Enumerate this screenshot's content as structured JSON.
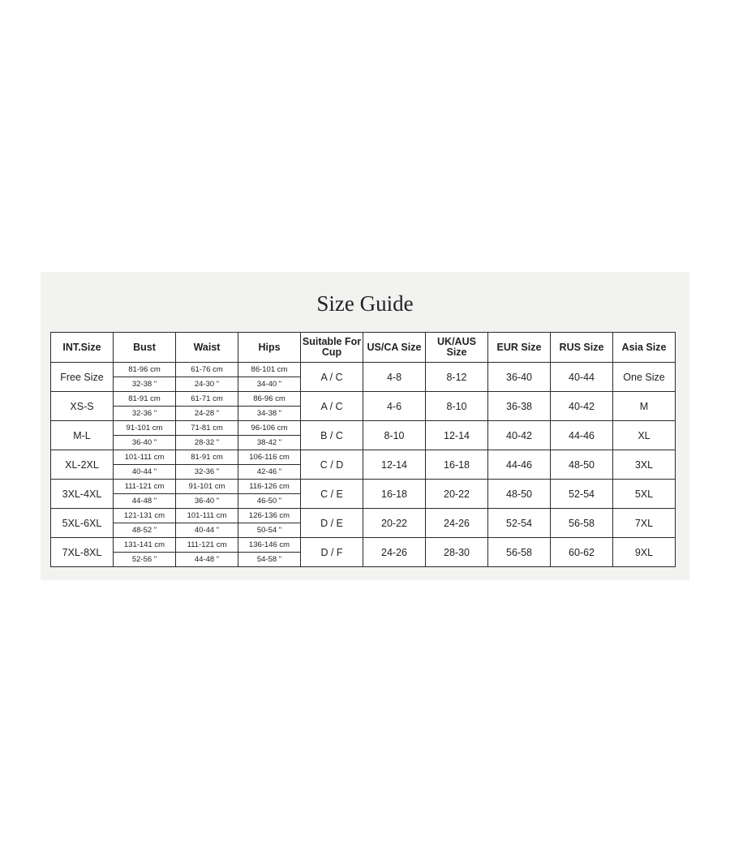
{
  "title": "Size Guide",
  "headers": [
    "INT.Size",
    "Bust",
    "Waist",
    "Hips",
    "Suitable For Cup",
    "US/CA Size",
    "UK/AUS Size",
    "EUR Size",
    "RUS Size",
    "Asia Size"
  ],
  "rows": [
    {
      "int": "Free Size",
      "bust_cm": "81-96 cm",
      "bust_in": "32-38 \"",
      "waist_cm": "61-76 cm",
      "waist_in": "24-30 \"",
      "hips_cm": "86-101 cm",
      "hips_in": "34-40 \"",
      "cup": "A / C",
      "us": "4-8",
      "uk": "8-12",
      "eur": "36-40",
      "rus": "40-44",
      "asia": "One Size"
    },
    {
      "int": "XS-S",
      "bust_cm": "81-91 cm",
      "bust_in": "32-36 \"",
      "waist_cm": "61-71 cm",
      "waist_in": "24-28 \"",
      "hips_cm": "86-96 cm",
      "hips_in": "34-38 \"",
      "cup": "A / C",
      "us": "4-6",
      "uk": "8-10",
      "eur": "36-38",
      "rus": "40-42",
      "asia": "M"
    },
    {
      "int": "M-L",
      "bust_cm": "91-101 cm",
      "bust_in": "36-40 \"",
      "waist_cm": "71-81 cm",
      "waist_in": "28-32 \"",
      "hips_cm": "96-106 cm",
      "hips_in": "38-42 \"",
      "cup": "B / C",
      "us": "8-10",
      "uk": "12-14",
      "eur": "40-42",
      "rus": "44-46",
      "asia": "XL"
    },
    {
      "int": "XL-2XL",
      "bust_cm": "101-111 cm",
      "bust_in": "40-44 \"",
      "waist_cm": "81-91 cm",
      "waist_in": "32-36 \"",
      "hips_cm": "106-116 cm",
      "hips_in": "42-46 \"",
      "cup": "C / D",
      "us": "12-14",
      "uk": "16-18",
      "eur": "44-46",
      "rus": "48-50",
      "asia": "3XL"
    },
    {
      "int": "3XL-4XL",
      "bust_cm": "111-121 cm",
      "bust_in": "44-48 \"",
      "waist_cm": "91-101 cm",
      "waist_in": "36-40 \"",
      "hips_cm": "116-126 cm",
      "hips_in": "46-50 \"",
      "cup": "C / E",
      "us": "16-18",
      "uk": "20-22",
      "eur": "48-50",
      "rus": "52-54",
      "asia": "5XL"
    },
    {
      "int": "5XL-6XL",
      "bust_cm": "121-131 cm",
      "bust_in": "48-52 \"",
      "waist_cm": "101-111 cm",
      "waist_in": "40-44 \"",
      "hips_cm": "126-136 cm",
      "hips_in": "50-54 \"",
      "cup": "D / E",
      "us": "20-22",
      "uk": "24-26",
      "eur": "52-54",
      "rus": "56-58",
      "asia": "7XL"
    },
    {
      "int": "7XL-8XL",
      "bust_cm": "131-141 cm",
      "bust_in": "52-56 \"",
      "waist_cm": "111-121 cm",
      "waist_in": "44-48 \"",
      "hips_cm": "136-146 cm",
      "hips_in": "54-58 \"",
      "cup": "D / F",
      "us": "24-26",
      "uk": "28-30",
      "eur": "56-58",
      "rus": "60-62",
      "asia": "9XL"
    }
  ]
}
